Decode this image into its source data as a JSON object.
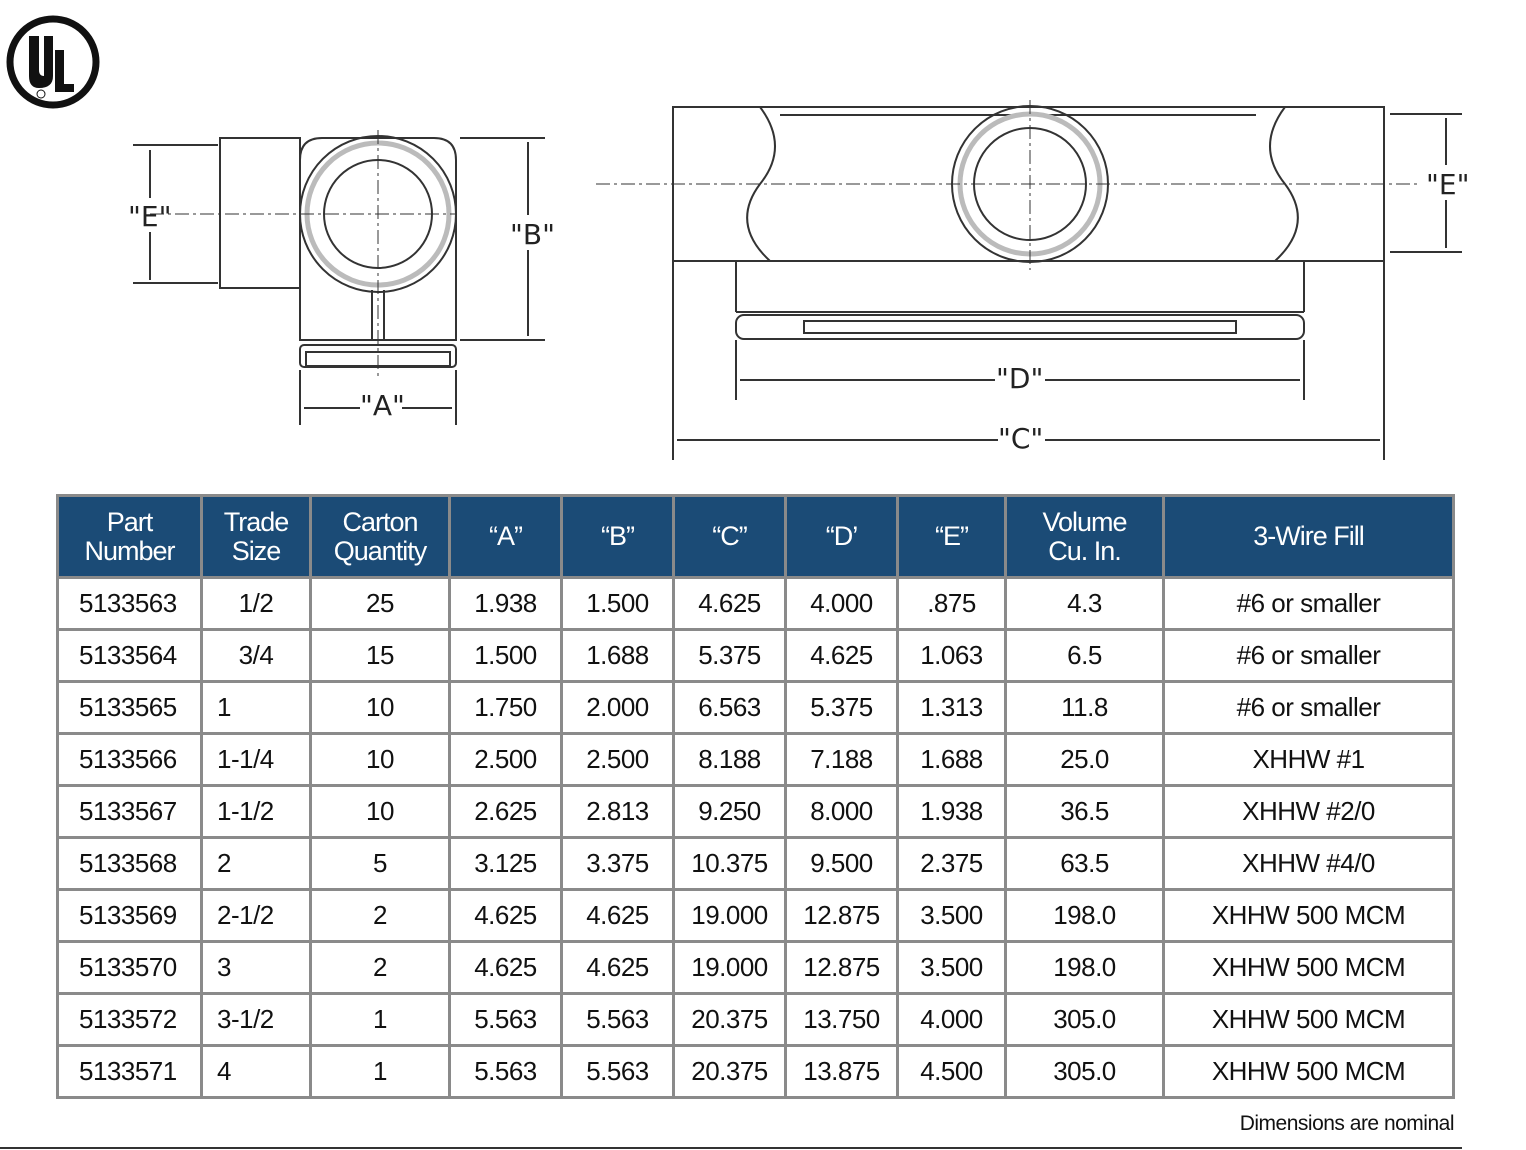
{
  "logo": {
    "text": "UL",
    "mark": "®"
  },
  "drawings": {
    "side_view_labels": [
      "\"E\"",
      "\"B\"",
      "\"A\""
    ],
    "front_view_labels": [
      "\"E\"",
      "\"D\"",
      "\"C\""
    ]
  },
  "table": {
    "headers": [
      [
        "Part",
        "Number"
      ],
      [
        "Trade",
        "Size"
      ],
      [
        "Carton",
        "Quantity"
      ],
      [
        "“A”"
      ],
      [
        "“B”"
      ],
      [
        "“C”"
      ],
      [
        "“D’"
      ],
      [
        "“E”"
      ],
      [
        "Volume",
        "Cu. In."
      ],
      [
        "3-Wire Fill"
      ]
    ],
    "rows": [
      [
        "5133563",
        "1/2",
        "25",
        "1.938",
        "1.500",
        "4.625",
        "4.000",
        ".875",
        "4.3",
        "#6 or smaller"
      ],
      [
        "5133564",
        "3/4",
        "15",
        "1.500",
        "1.688",
        "5.375",
        "4.625",
        "1.063",
        "6.5",
        "#6 or smaller"
      ],
      [
        "5133565",
        "1",
        "10",
        "1.750",
        "2.000",
        "6.563",
        "5.375",
        "1.313",
        "11.8",
        "#6 or smaller"
      ],
      [
        "5133566",
        "1-1/4",
        "10",
        "2.500",
        "2.500",
        "8.188",
        "7.188",
        "1.688",
        "25.0",
        "XHHW #1"
      ],
      [
        "5133567",
        "1-1/2",
        "10",
        "2.625",
        "2.813",
        "9.250",
        "8.000",
        "1.938",
        "36.5",
        "XHHW #2/0"
      ],
      [
        "5133568",
        "2",
        "5",
        "3.125",
        "3.375",
        "10.375",
        "9.500",
        "2.375",
        "63.5",
        "XHHW #4/0"
      ],
      [
        "5133569",
        "2-1/2",
        "2",
        "4.625",
        "4.625",
        "19.000",
        "12.875",
        "3.500",
        "198.0",
        "XHHW 500 MCM"
      ],
      [
        "5133570",
        "3",
        "2",
        "4.625",
        "4.625",
        "19.000",
        "12.875",
        "3.500",
        "198.0",
        "XHHW 500 MCM"
      ],
      [
        "5133572",
        "3-1/2",
        "1",
        "5.563",
        "5.563",
        "20.375",
        "13.750",
        "4.000",
        "305.0",
        "XHHW 500 MCM"
      ],
      [
        "5133571",
        "4",
        "1",
        "5.563",
        "5.563",
        "20.375",
        "13.875",
        "4.500",
        "305.0",
        "XHHW 500 MCM"
      ]
    ]
  },
  "note": "Dimensions are nominal",
  "colors": {
    "header_bg": "#1b4b76",
    "grid": "#8a8a8a"
  }
}
